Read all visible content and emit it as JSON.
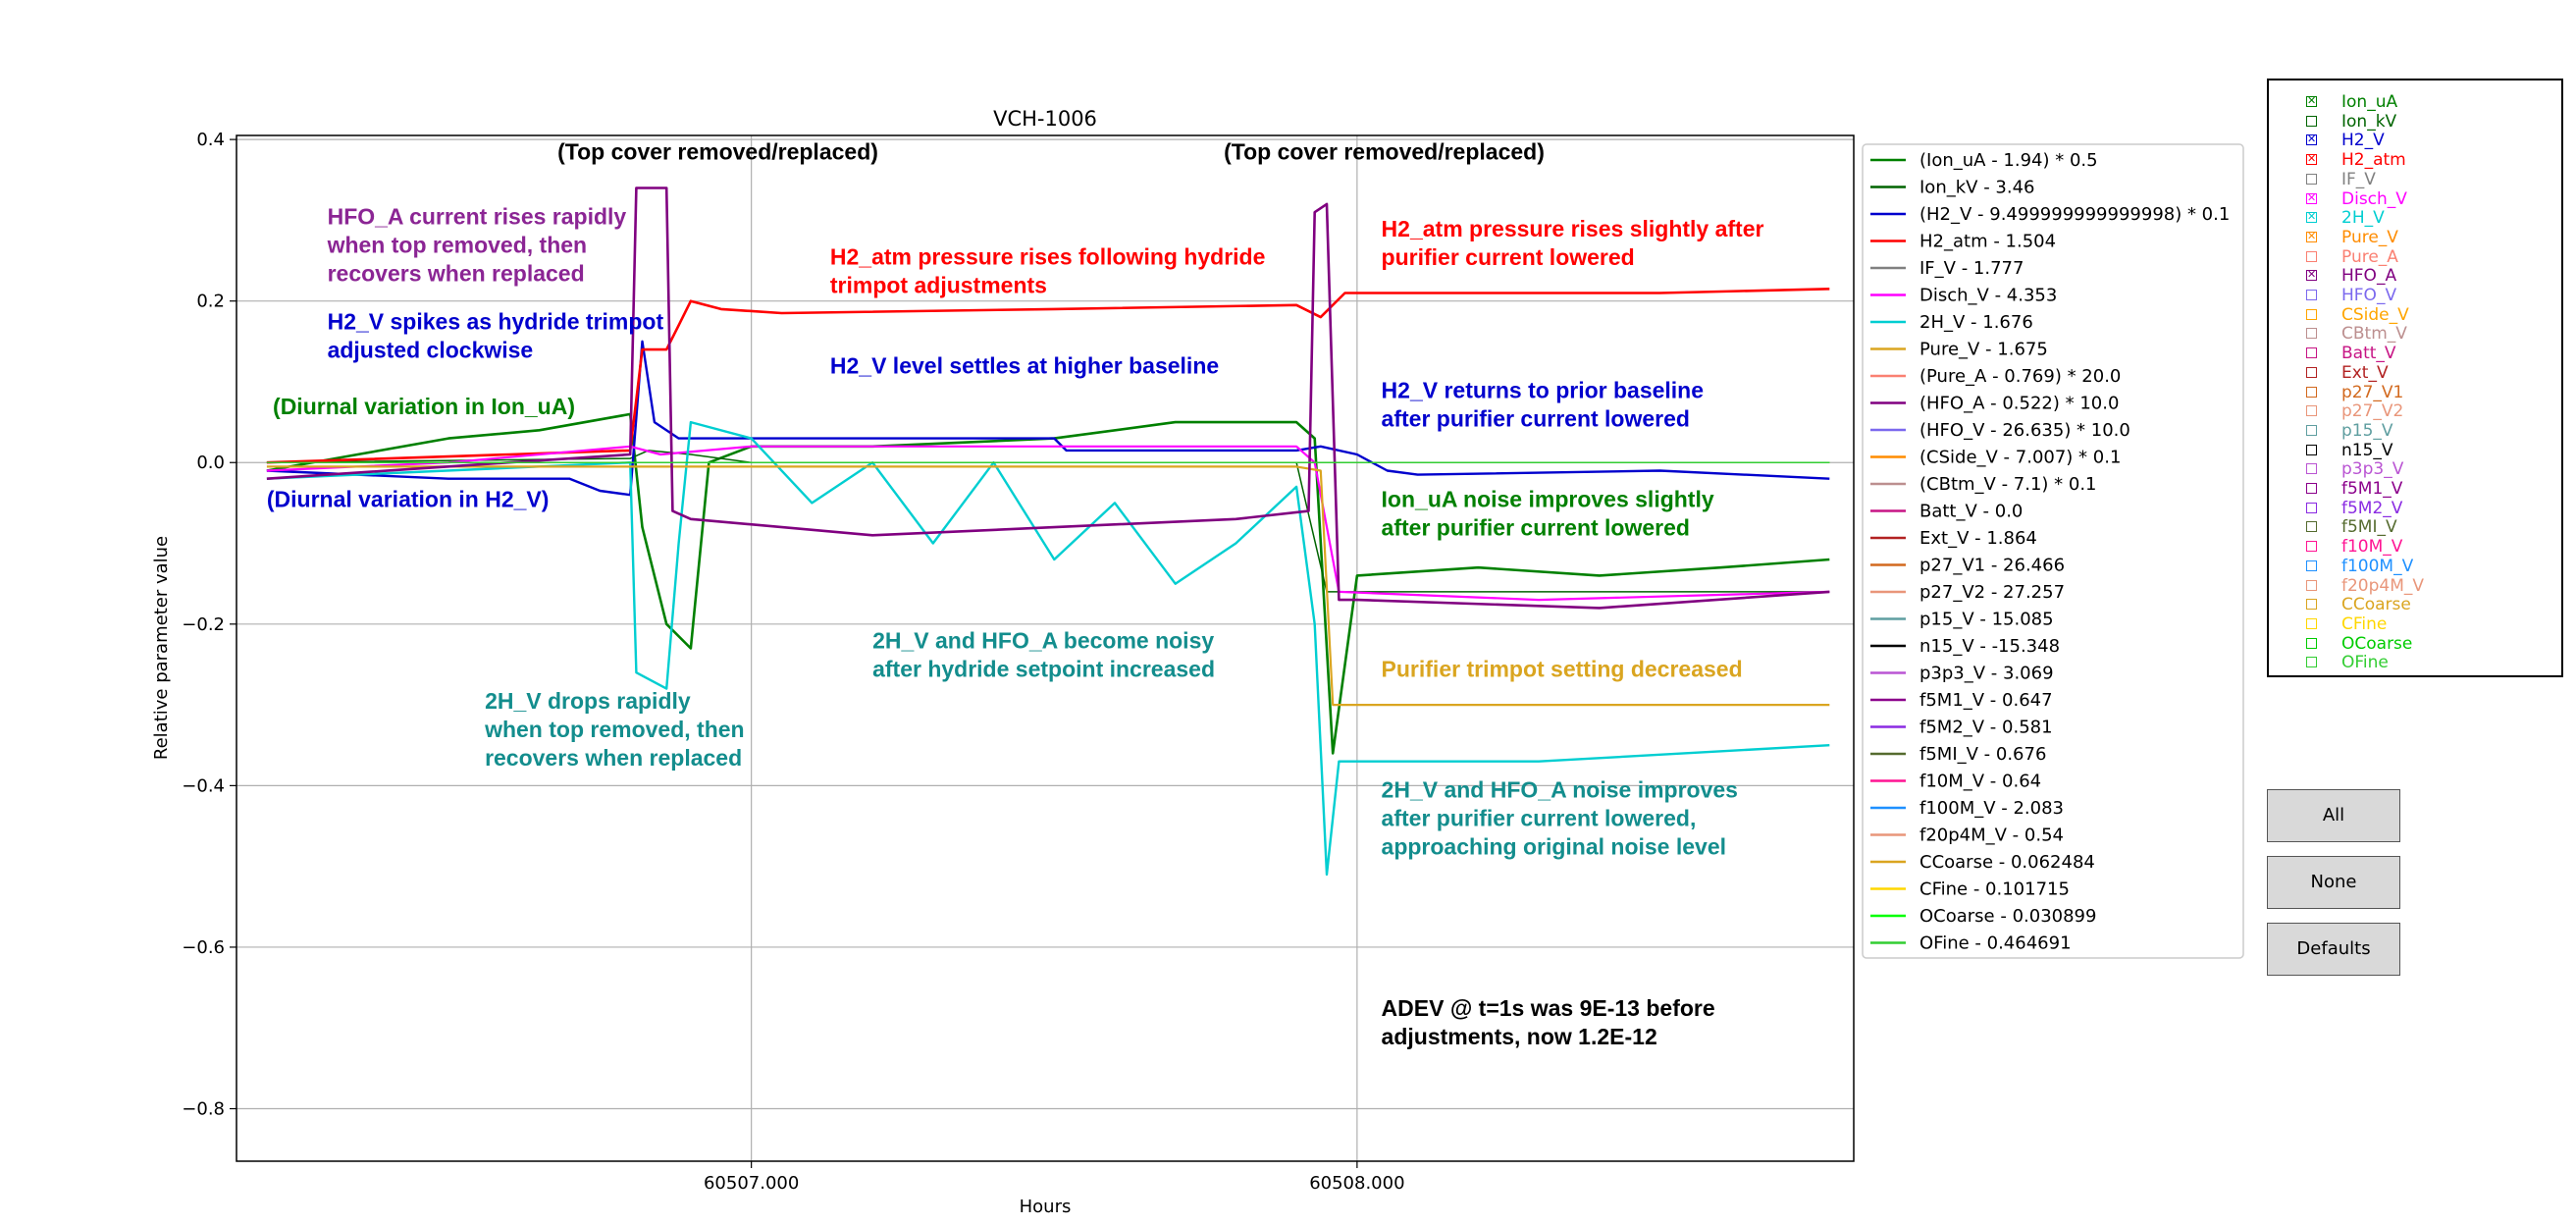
{
  "chart_data": {
    "type": "line",
    "title": "VCH-1006",
    "xlabel": "Hours",
    "ylabel": "Relative parameter value",
    "xlim": [
      60506.15,
      60508.82
    ],
    "ylim": [
      -0.865,
      0.405
    ],
    "x_ticks": [
      {
        "value": 60507.0,
        "label": "60507.000"
      },
      {
        "value": 60508.0,
        "label": "60508.000"
      }
    ],
    "y_ticks": [
      {
        "value": 0.4,
        "label": "0.4"
      },
      {
        "value": 0.2,
        "label": "0.2"
      },
      {
        "value": 0.0,
        "label": "0.0"
      },
      {
        "value": -0.2,
        "label": "−0.2"
      },
      {
        "value": -0.4,
        "label": "−0.4"
      },
      {
        "value": -0.6,
        "label": "−0.6"
      },
      {
        "value": -0.8,
        "label": "−0.8"
      }
    ],
    "grid": true,
    "legend_position": "right-outside",
    "series": [
      {
        "name": "(Ion_uA - 1.94) * 0.5",
        "color": "#008000",
        "width": 2.6,
        "x": [
          60506.2,
          60506.35,
          60506.5,
          60506.65,
          60506.8,
          60506.82,
          60506.86,
          60506.9,
          60506.93,
          60507.0,
          60507.2,
          60507.5,
          60507.7,
          60507.9,
          60507.93,
          60507.96,
          60508.0,
          60508.2,
          60508.4,
          60508.6,
          60508.78
        ],
        "y": [
          -0.01,
          0.01,
          0.03,
          0.04,
          0.06,
          -0.08,
          -0.2,
          -0.23,
          0.0,
          0.02,
          0.02,
          0.03,
          0.05,
          0.05,
          0.03,
          -0.36,
          -0.14,
          -0.13,
          -0.14,
          -0.13,
          -0.12
        ]
      },
      {
        "name": "Ion_kV - 3.46",
        "color": "#006400",
        "width": 1.5,
        "x": [
          60506.2,
          60506.8,
          60506.83,
          60506.9,
          60507.0,
          60507.9,
          60507.95,
          60508.78
        ],
        "y": [
          0.0,
          0.005,
          0.015,
          0.01,
          0.0,
          0.0,
          -0.16,
          -0.16
        ]
      },
      {
        "name": "(H2_V - 9.499999999999998) * 0.1",
        "color": "#0000cd",
        "width": 2.4,
        "x": [
          60506.2,
          60506.5,
          60506.7,
          60506.75,
          60506.8,
          60506.82,
          60506.84,
          60506.88,
          60507.0,
          60507.5,
          60507.52,
          60507.9,
          60507.94,
          60508.0,
          60508.05,
          60508.1,
          60508.5,
          60508.78
        ],
        "y": [
          -0.01,
          -0.02,
          -0.02,
          -0.035,
          -0.04,
          0.15,
          0.05,
          0.03,
          0.03,
          0.03,
          0.015,
          0.015,
          0.02,
          0.01,
          -0.01,
          -0.015,
          -0.01,
          -0.02
        ]
      },
      {
        "name": "H2_atm - 1.504",
        "color": "#ff0000",
        "width": 2.6,
        "x": [
          60506.2,
          60506.6,
          60506.8,
          60506.82,
          60506.86,
          60506.88,
          60506.9,
          60506.95,
          60507.05,
          60507.5,
          60507.9,
          60507.94,
          60507.98,
          60508.2,
          60508.5,
          60508.78
        ],
        "y": [
          0.0,
          0.01,
          0.015,
          0.14,
          0.14,
          0.17,
          0.2,
          0.19,
          0.185,
          0.19,
          0.195,
          0.18,
          0.21,
          0.21,
          0.21,
          0.215
        ]
      },
      {
        "name": "IF_V - 1.777",
        "color": "#808080",
        "width": 1.5,
        "x": [
          60506.2,
          60508.78
        ],
        "y": [
          0.0,
          0.0
        ]
      },
      {
        "name": "Disch_V - 4.353",
        "color": "#ff00ff",
        "width": 2.2,
        "x": [
          60506.2,
          60506.5,
          60506.8,
          60506.85,
          60507.0,
          60507.5,
          60507.9,
          60507.93,
          60507.97,
          60508.3,
          60508.78
        ],
        "y": [
          -0.01,
          0.0,
          0.02,
          0.01,
          0.02,
          0.02,
          0.02,
          0.0,
          -0.16,
          -0.17,
          -0.16
        ]
      },
      {
        "name": "2H_V - 1.676",
        "color": "#00ced1",
        "width": 2.4,
        "x": [
          60506.2,
          60506.8,
          60506.81,
          60506.86,
          60506.88,
          60506.9,
          60507.0,
          60507.1,
          60507.2,
          60507.3,
          60507.4,
          60507.5,
          60507.6,
          60507.7,
          60507.8,
          60507.9,
          60507.93,
          60507.95,
          60507.97,
          60508.0,
          60508.3,
          60508.78
        ],
        "y": [
          -0.02,
          0.0,
          -0.26,
          -0.28,
          -0.1,
          0.05,
          0.03,
          -0.05,
          0.0,
          -0.1,
          0.0,
          -0.12,
          -0.05,
          -0.15,
          -0.1,
          -0.03,
          -0.2,
          -0.51,
          -0.37,
          -0.37,
          -0.37,
          -0.35
        ]
      },
      {
        "name": "Pure_V - 1.675",
        "color": "#daa520",
        "width": 2.2,
        "x": [
          60506.2,
          60507.9,
          60507.94,
          60507.96,
          60508.78
        ],
        "y": [
          -0.005,
          -0.005,
          -0.01,
          -0.3,
          -0.3
        ]
      },
      {
        "name": "(Pure_A - 0.769) * 20.0",
        "color": "#fa8072",
        "width": 1.5,
        "x": [
          60506.2,
          60508.78
        ],
        "y": [
          0.0,
          0.0
        ]
      },
      {
        "name": "(HFO_A - 0.522) * 10.0",
        "color": "#800080",
        "width": 2.6,
        "x": [
          60506.2,
          60506.6,
          60506.8,
          60506.81,
          60506.82,
          60506.86,
          60506.87,
          60506.9,
          60507.2,
          60507.5,
          60507.8,
          60507.92,
          60507.93,
          60507.95,
          60507.97,
          60508.0,
          60508.4,
          60508.78
        ],
        "y": [
          -0.02,
          0.0,
          0.01,
          0.34,
          0.34,
          0.34,
          -0.06,
          -0.07,
          -0.09,
          -0.08,
          -0.07,
          -0.06,
          0.31,
          0.32,
          -0.17,
          -0.17,
          -0.18,
          -0.16
        ]
      },
      {
        "name": "(HFO_V - 26.635) * 10.0",
        "color": "#7b68ee",
        "width": 1.5,
        "x": [
          60506.2,
          60508.78
        ],
        "y": [
          0.0,
          0.0
        ]
      },
      {
        "name": "(CSide_V - 7.007) * 0.1",
        "color": "#ff8c00",
        "width": 1.5,
        "x": [
          60506.2,
          60508.78
        ],
        "y": [
          0.0,
          0.0
        ]
      },
      {
        "name": "(CBtm_V - 7.1) * 0.1",
        "color": "#bc8f8f",
        "width": 1.5,
        "x": [
          60506.2,
          60508.78
        ],
        "y": [
          0.0,
          0.0
        ]
      },
      {
        "name": "Batt_V - 0.0",
        "color": "#c71585",
        "width": 1.5,
        "x": [
          60506.2,
          60508.78
        ],
        "y": [
          0.0,
          0.0
        ]
      },
      {
        "name": "Ext_V - 1.864",
        "color": "#b22222",
        "width": 1.5,
        "x": [
          60506.2,
          60508.78
        ],
        "y": [
          0.0,
          0.0
        ]
      },
      {
        "name": "p27_V1 - 26.466",
        "color": "#d2691e",
        "width": 1.5,
        "x": [
          60506.2,
          60508.78
        ],
        "y": [
          0.0,
          0.0
        ]
      },
      {
        "name": "p27_V2 - 27.257",
        "color": "#e9967a",
        "width": 1.5,
        "x": [
          60506.2,
          60508.78
        ],
        "y": [
          0.0,
          0.0
        ]
      },
      {
        "name": "p15_V - 15.085",
        "color": "#5f9ea0",
        "width": 1.5,
        "x": [
          60506.2,
          60508.78
        ],
        "y": [
          0.0,
          0.0
        ]
      },
      {
        "name": "n15_V - -15.348",
        "color": "#000000",
        "width": 1.5,
        "x": [
          60506.2,
          60508.78
        ],
        "y": [
          0.0,
          0.0
        ]
      },
      {
        "name": "p3p3_V - 3.069",
        "color": "#ba55d3",
        "width": 1.5,
        "x": [
          60506.2,
          60508.78
        ],
        "y": [
          0.0,
          0.0
        ]
      },
      {
        "name": "f5M1_V - 0.647",
        "color": "#8b008b",
        "width": 1.5,
        "x": [
          60506.2,
          60508.78
        ],
        "y": [
          0.0,
          0.0
        ]
      },
      {
        "name": "f5M2_V - 0.581",
        "color": "#8a2be2",
        "width": 1.5,
        "x": [
          60506.2,
          60508.78
        ],
        "y": [
          0.0,
          0.0
        ]
      },
      {
        "name": "f5MI_V - 0.676",
        "color": "#556b2f",
        "width": 1.5,
        "x": [
          60506.2,
          60508.78
        ],
        "y": [
          0.0,
          0.0
        ]
      },
      {
        "name": "f10M_V - 0.64",
        "color": "#ff1493",
        "width": 1.5,
        "x": [
          60506.2,
          60508.78
        ],
        "y": [
          0.0,
          0.0
        ]
      },
      {
        "name": "f100M_V - 2.083",
        "color": "#1e90ff",
        "width": 1.5,
        "x": [
          60506.2,
          60508.78
        ],
        "y": [
          0.0,
          0.0
        ]
      },
      {
        "name": "f20p4M_V - 0.54",
        "color": "#e9967a",
        "width": 1.5,
        "x": [
          60506.2,
          60508.78
        ],
        "y": [
          0.0,
          0.0
        ]
      },
      {
        "name": "CCoarse - 0.062484",
        "color": "#daa520",
        "width": 1.5,
        "x": [
          60506.2,
          60508.78
        ],
        "y": [
          0.0,
          0.0
        ]
      },
      {
        "name": "CFine - 0.101715",
        "color": "#ffd700",
        "width": 1.5,
        "x": [
          60506.2,
          60508.78
        ],
        "y": [
          0.0,
          0.0
        ]
      },
      {
        "name": "OCoarse - 0.030899",
        "color": "#00ff00",
        "width": 1.5,
        "x": [
          60506.2,
          60508.78
        ],
        "y": [
          0.0,
          0.0
        ]
      },
      {
        "name": "OFine - 0.464691",
        "color": "#32cd32",
        "width": 1.5,
        "x": [
          60506.2,
          60508.78
        ],
        "y": [
          0.0,
          0.0
        ]
      }
    ],
    "annotations": [
      {
        "lines": [
          "(Top cover removed/replaced)"
        ],
        "color": "#000000",
        "x": 60506.68,
        "y": 0.375
      },
      {
        "lines": [
          "(Top cover removed/replaced)"
        ],
        "color": "#000000",
        "x": 60507.78,
        "y": 0.375
      },
      {
        "lines": [
          "HFO_A current rises rapidly",
          "when top removed, then",
          "recovers when replaced"
        ],
        "color": "#8b2594",
        "x": 60506.3,
        "y": 0.295
      },
      {
        "lines": [
          "H2_V spikes as hydride trimpot",
          "adjusted clockwise"
        ],
        "color": "#0000cd",
        "x": 60506.3,
        "y": 0.165
      },
      {
        "lines": [
          "(Diurnal variation in Ion_uA)"
        ],
        "color": "#008000",
        "x": 60506.21,
        "y": 0.06
      },
      {
        "lines": [
          "(Diurnal variation in H2_V)"
        ],
        "color": "#0000cd",
        "x": 60506.2,
        "y": -0.055
      },
      {
        "lines": [
          "H2_atm pressure rises following hydride",
          "trimpot adjustments"
        ],
        "color": "#ff0000",
        "x": 60507.13,
        "y": 0.245
      },
      {
        "lines": [
          "H2_V level settles at higher baseline"
        ],
        "color": "#0000cd",
        "x": 60507.13,
        "y": 0.11
      },
      {
        "lines": [
          "H2_atm pressure rises slightly after",
          "purifier current lowered"
        ],
        "color": "#ff0000",
        "x": 60508.04,
        "y": 0.28
      },
      {
        "lines": [
          "H2_V returns to prior baseline",
          "after purifier current lowered"
        ],
        "color": "#0000cd",
        "x": 60508.04,
        "y": 0.08
      },
      {
        "lines": [
          "Ion_uA noise improves slightly",
          "after purifier current lowered"
        ],
        "color": "#008000",
        "x": 60508.04,
        "y": -0.055
      },
      {
        "lines": [
          "2H_V and HFO_A become noisy",
          "after hydride setpoint increased"
        ],
        "color": "#138d8d",
        "x": 60507.2,
        "y": -0.23
      },
      {
        "lines": [
          "Purifier trimpot setting decreased"
        ],
        "color": "#daa520",
        "x": 60508.04,
        "y": -0.265
      },
      {
        "lines": [
          "2H_V drops rapidly",
          "when top removed, then",
          "recovers when replaced"
        ],
        "color": "#138d8d",
        "x": 60506.56,
        "y": -0.305
      },
      {
        "lines": [
          "2H_V and HFO_A noise improves",
          "after purifier current lowered,",
          "approaching original noise level"
        ],
        "color": "#138d8d",
        "x": 60508.04,
        "y": -0.415
      },
      {
        "lines": [
          "ADEV @ t=1s was 9E-13 before",
          "adjustments, now 1.2E-12"
        ],
        "color": "#000000",
        "x": 60508.04,
        "y": -0.685
      }
    ]
  },
  "check_panel": {
    "items": [
      {
        "label": "Ion_uA",
        "color": "#008000",
        "checked": true
      },
      {
        "label": "Ion_kV",
        "color": "#006400",
        "checked": false
      },
      {
        "label": "H2_V",
        "color": "#0000cd",
        "checked": true
      },
      {
        "label": "H2_atm",
        "color": "#ff0000",
        "checked": true
      },
      {
        "label": "IF_V",
        "color": "#808080",
        "checked": false
      },
      {
        "label": "Disch_V",
        "color": "#ff00ff",
        "checked": true
      },
      {
        "label": "2H_V",
        "color": "#00ced1",
        "checked": true
      },
      {
        "label": "Pure_V",
        "color": "#ff8c00",
        "checked": true
      },
      {
        "label": "Pure_A",
        "color": "#fa8072",
        "checked": false
      },
      {
        "label": "HFO_A",
        "color": "#800080",
        "checked": true
      },
      {
        "label": "HFO_V",
        "color": "#7b68ee",
        "checked": false
      },
      {
        "label": "CSide_V",
        "color": "#ffa500",
        "checked": false
      },
      {
        "label": "CBtm_V",
        "color": "#bc8f8f",
        "checked": false
      },
      {
        "label": "Batt_V",
        "color": "#c71585",
        "checked": false
      },
      {
        "label": "Ext_V",
        "color": "#b22222",
        "checked": false
      },
      {
        "label": "p27_V1",
        "color": "#d2691e",
        "checked": false
      },
      {
        "label": "p27_V2",
        "color": "#e9967a",
        "checked": false
      },
      {
        "label": "p15_V",
        "color": "#5f9ea0",
        "checked": false
      },
      {
        "label": "n15_V",
        "color": "#000000",
        "checked": false
      },
      {
        "label": "p3p3_V",
        "color": "#ba55d3",
        "checked": false
      },
      {
        "label": "f5M1_V",
        "color": "#8b008b",
        "checked": false
      },
      {
        "label": "f5M2_V",
        "color": "#8a2be2",
        "checked": false
      },
      {
        "label": "f5MI_V",
        "color": "#556b2f",
        "checked": false
      },
      {
        "label": "f10M_V",
        "color": "#ff1493",
        "checked": false
      },
      {
        "label": "f100M_V",
        "color": "#1e90ff",
        "checked": false
      },
      {
        "label": "f20p4M_V",
        "color": "#e9967a",
        "checked": false
      },
      {
        "label": "CCoarse",
        "color": "#daa520",
        "checked": false
      },
      {
        "label": "CFine",
        "color": "#ffd700",
        "checked": false
      },
      {
        "label": "OCoarse",
        "color": "#00cc00",
        "checked": false
      },
      {
        "label": "OFine",
        "color": "#32cd32",
        "checked": false
      }
    ]
  },
  "buttons": {
    "all_label": "All",
    "none_label": "None",
    "defaults_label": "Defaults"
  }
}
